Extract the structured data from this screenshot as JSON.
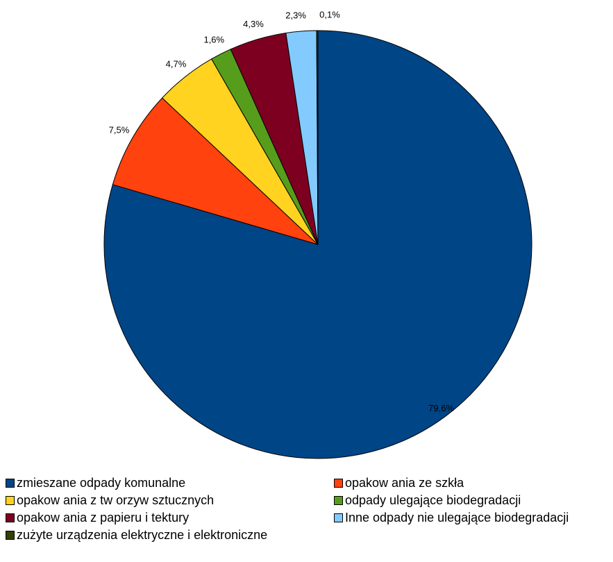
{
  "chart_data": {
    "type": "pie",
    "title": "",
    "legend_position": "bottom",
    "start_angle": "top",
    "direction": "clockwise",
    "slices": [
      {
        "label": "zmieszane odpady komunalne",
        "value": 79.6,
        "display": "79,6%",
        "color": "#004586"
      },
      {
        "label": "opakow ania ze szkła",
        "value": 7.5,
        "display": "7,5%",
        "color": "#ff420e"
      },
      {
        "label": "opakow ania z tw orzyw  sztucznych",
        "value": 4.7,
        "display": "4,7%",
        "color": "#ffd320"
      },
      {
        "label": "odpady ulegające biodegradacji",
        "value": 1.6,
        "display": "1,6%",
        "color": "#579d1c"
      },
      {
        "label": "opakow ania z papieru i tektury",
        "value": 4.3,
        "display": "4,3%",
        "color": "#7e0021"
      },
      {
        "label": "Inne odpady nie ulegające biodegradacji",
        "value": 2.3,
        "display": "2,3%",
        "color": "#83caff"
      },
      {
        "label": "zużyte urządzenia elektryczne i elektroniczne",
        "value": 0.1,
        "display": "0,1%",
        "color": "#314004"
      }
    ]
  }
}
